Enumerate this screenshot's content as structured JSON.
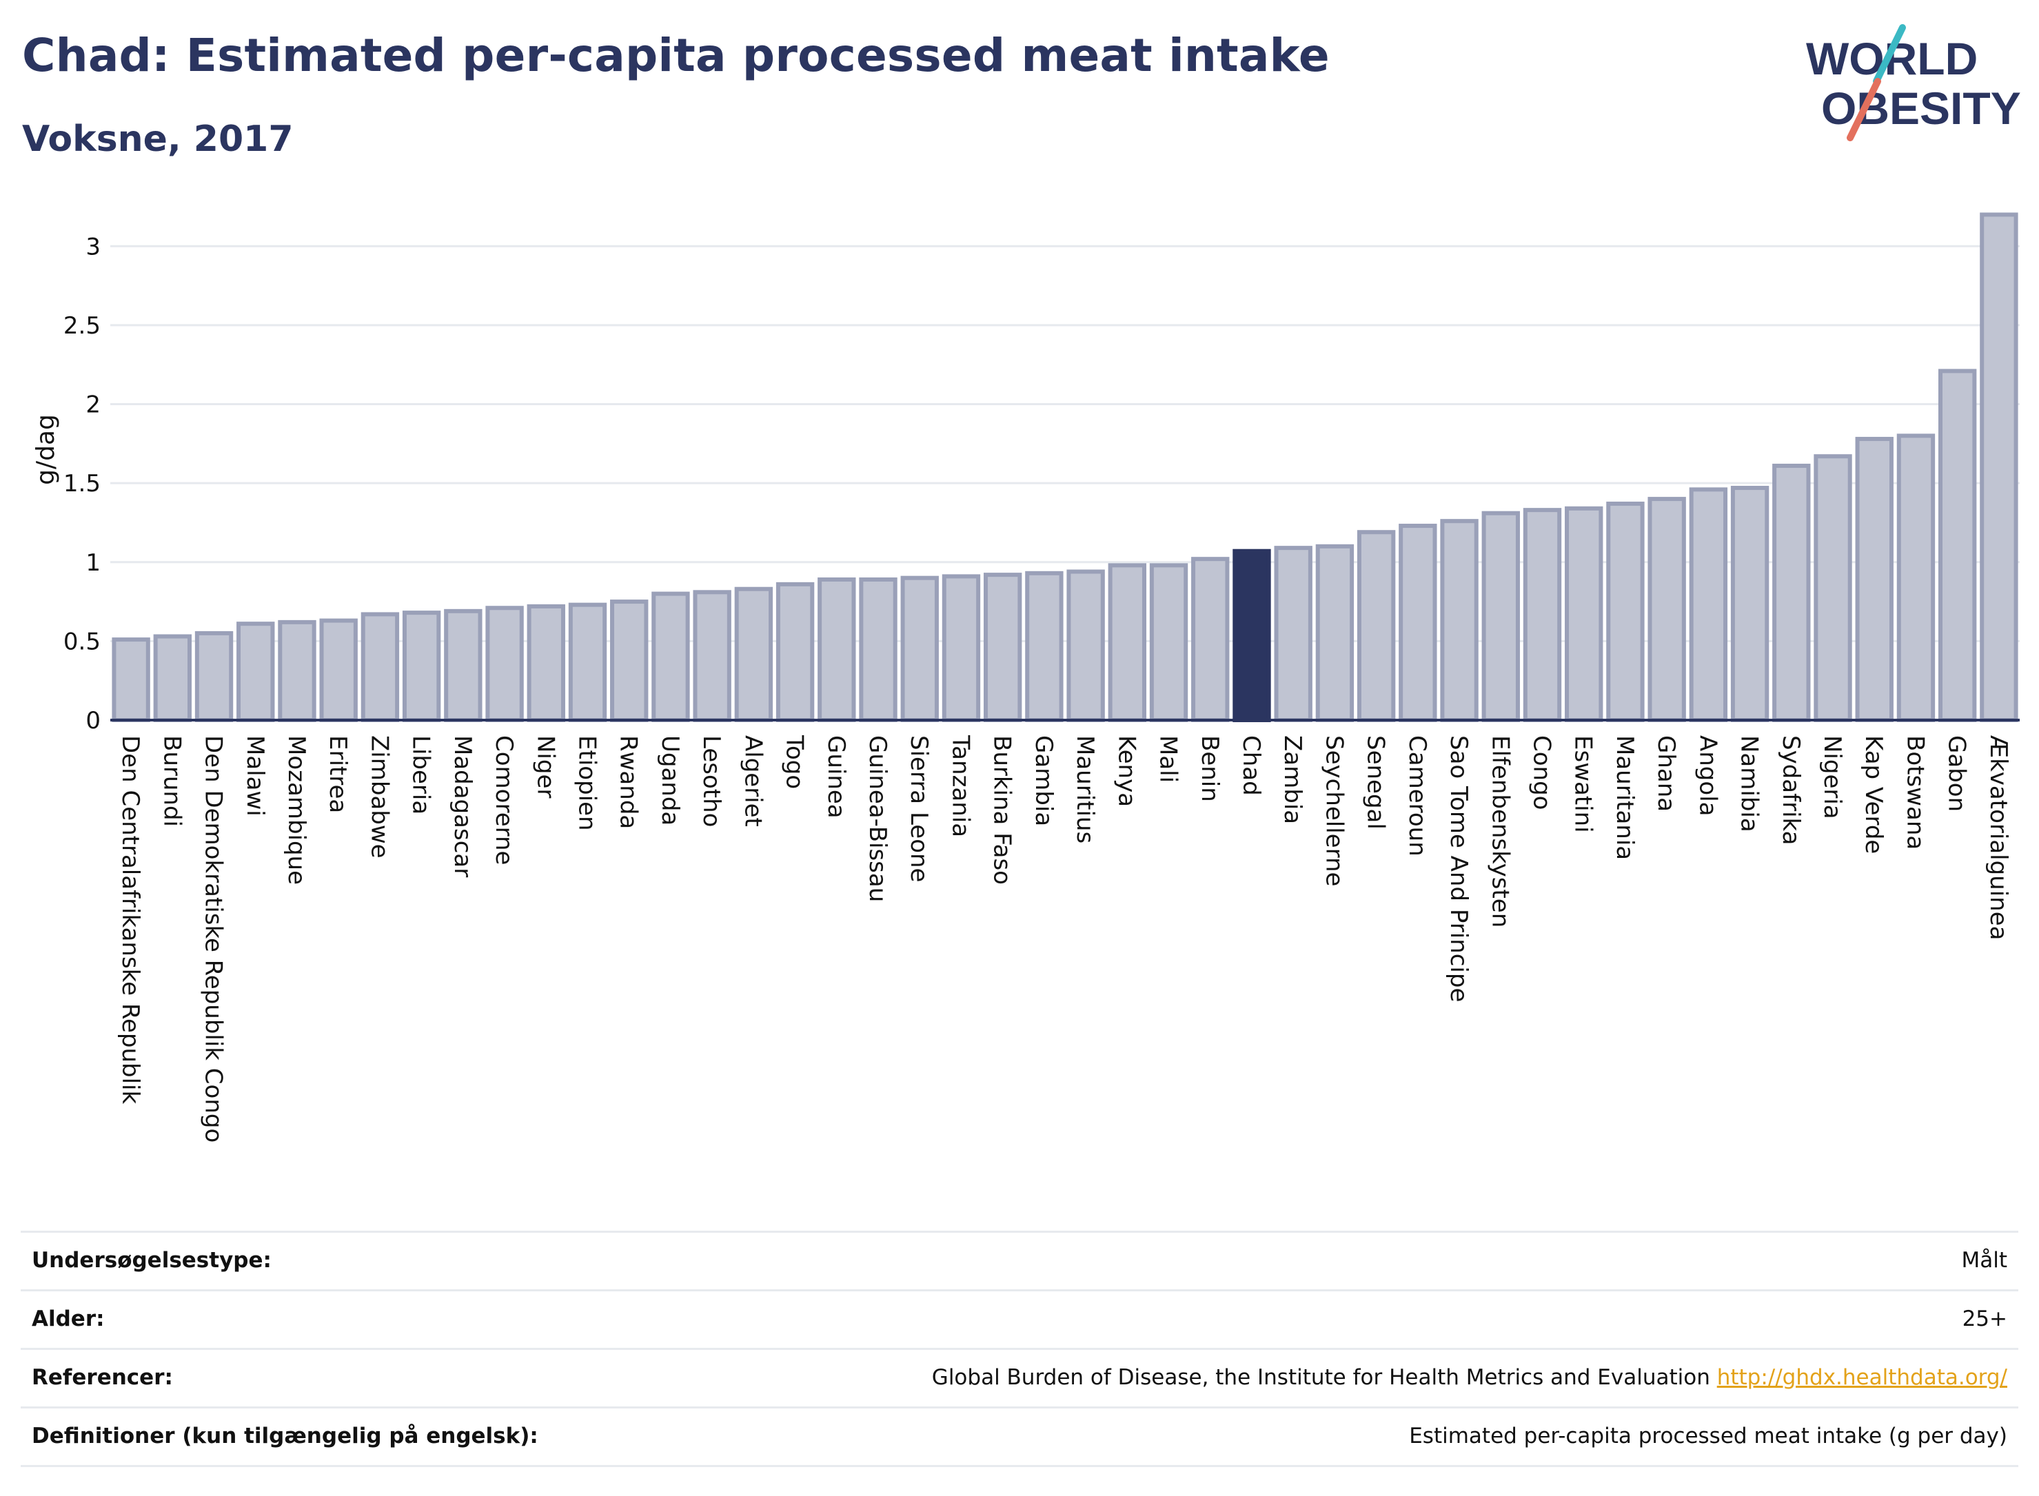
{
  "header": {
    "title": "Chad: Estimated per-capita processed meat intake",
    "subtitle": "Voksne, 2017"
  },
  "logo": {
    "line1": "WORLD",
    "line2": "OBESITY"
  },
  "colors": {
    "highlight": "#2b3560",
    "bar": "#c0c4d2",
    "bar_border": "#9aa0b8",
    "title": "#2b3560",
    "link": "#e3a21a"
  },
  "chart_data": {
    "type": "bar",
    "ylabel": "g/dag",
    "xlabel": "",
    "ylim": [
      0,
      3.25
    ],
    "yticks": [
      0,
      0.5,
      1,
      1.5,
      2,
      2.5,
      3
    ],
    "ytick_labels": [
      "0",
      "0.5",
      "1",
      "1.5",
      "2",
      "2.5",
      "3"
    ],
    "highlight": "Chad",
    "grid": true,
    "categories": [
      "Den Centralafrikanske Republik",
      "Burundi",
      "Den Demokratiske Republik Congo",
      "Malawi",
      "Mozambique",
      "Eritrea",
      "Zimbabwe",
      "Liberia",
      "Madagascar",
      "Comorerne",
      "Niger",
      "Etiopien",
      "Rwanda",
      "Uganda",
      "Lesotho",
      "Algeriet",
      "Togo",
      "Guinea",
      "Guinea-Bissau",
      "Sierra Leone",
      "Tanzania",
      "Burkina Faso",
      "Gambia",
      "Mauritius",
      "Kenya",
      "Mali",
      "Benin",
      "Chad",
      "Zambia",
      "Seychellerne",
      "Senegal",
      "Cameroun",
      "Sao Tome And Principe",
      "Elfenbenskysten",
      "Congo",
      "Eswatini",
      "Mauritania",
      "Ghana",
      "Angola",
      "Namibia",
      "Sydafrika",
      "Nigeria",
      "Kap Verde",
      "Botswana",
      "Gabon",
      "Ækvatorialguinea"
    ],
    "values": [
      0.51,
      0.53,
      0.55,
      0.61,
      0.62,
      0.63,
      0.67,
      0.68,
      0.69,
      0.71,
      0.72,
      0.73,
      0.75,
      0.8,
      0.81,
      0.83,
      0.86,
      0.89,
      0.89,
      0.9,
      0.91,
      0.92,
      0.93,
      0.94,
      0.98,
      0.98,
      1.02,
      1.07,
      1.09,
      1.1,
      1.19,
      1.23,
      1.26,
      1.31,
      1.33,
      1.34,
      1.37,
      1.4,
      1.46,
      1.47,
      1.61,
      1.67,
      1.78,
      1.8,
      2.21,
      3.2
    ]
  },
  "meta": {
    "rows": [
      {
        "label": "Undersøgelsestype:",
        "value": "Målt"
      },
      {
        "label": "Alder:",
        "value": "25+"
      },
      {
        "label": "Referencer:",
        "value": "Global Burden of Disease, the Institute for Health Metrics and Evaluation",
        "link": "http://ghdx.healthdata.org/"
      },
      {
        "label": "Definitioner (kun tilgængelig på engelsk):",
        "value": "Estimated per-capita processed meat intake (g per day)"
      }
    ]
  }
}
